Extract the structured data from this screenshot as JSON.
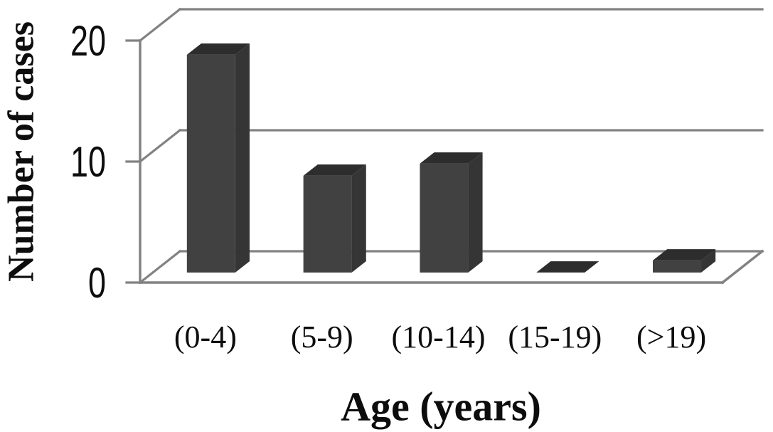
{
  "chart_data": {
    "type": "bar",
    "variant": "3d-column",
    "title": "",
    "xlabel": "Age (years)",
    "ylabel": "Number of cases",
    "categories": [
      "(0-4)",
      "(5-9)",
      "(10-14)",
      "(15-19)",
      "(>19)"
    ],
    "values": [
      18,
      8,
      9,
      0,
      1
    ],
    "series": [
      {
        "name": "Number of cases",
        "values": [
          18,
          8,
          9,
          0,
          1
        ]
      }
    ],
    "yticks": [
      0,
      10,
      20
    ],
    "ylim": [
      0,
      20
    ],
    "grid": true,
    "legend": false,
    "colors": {
      "bar_front": "#414141",
      "bar_top": "#2d2d2d",
      "bar_side": "#353535",
      "frame": "#828282",
      "text": "#0d0d0d",
      "background": "#ffffff"
    }
  }
}
